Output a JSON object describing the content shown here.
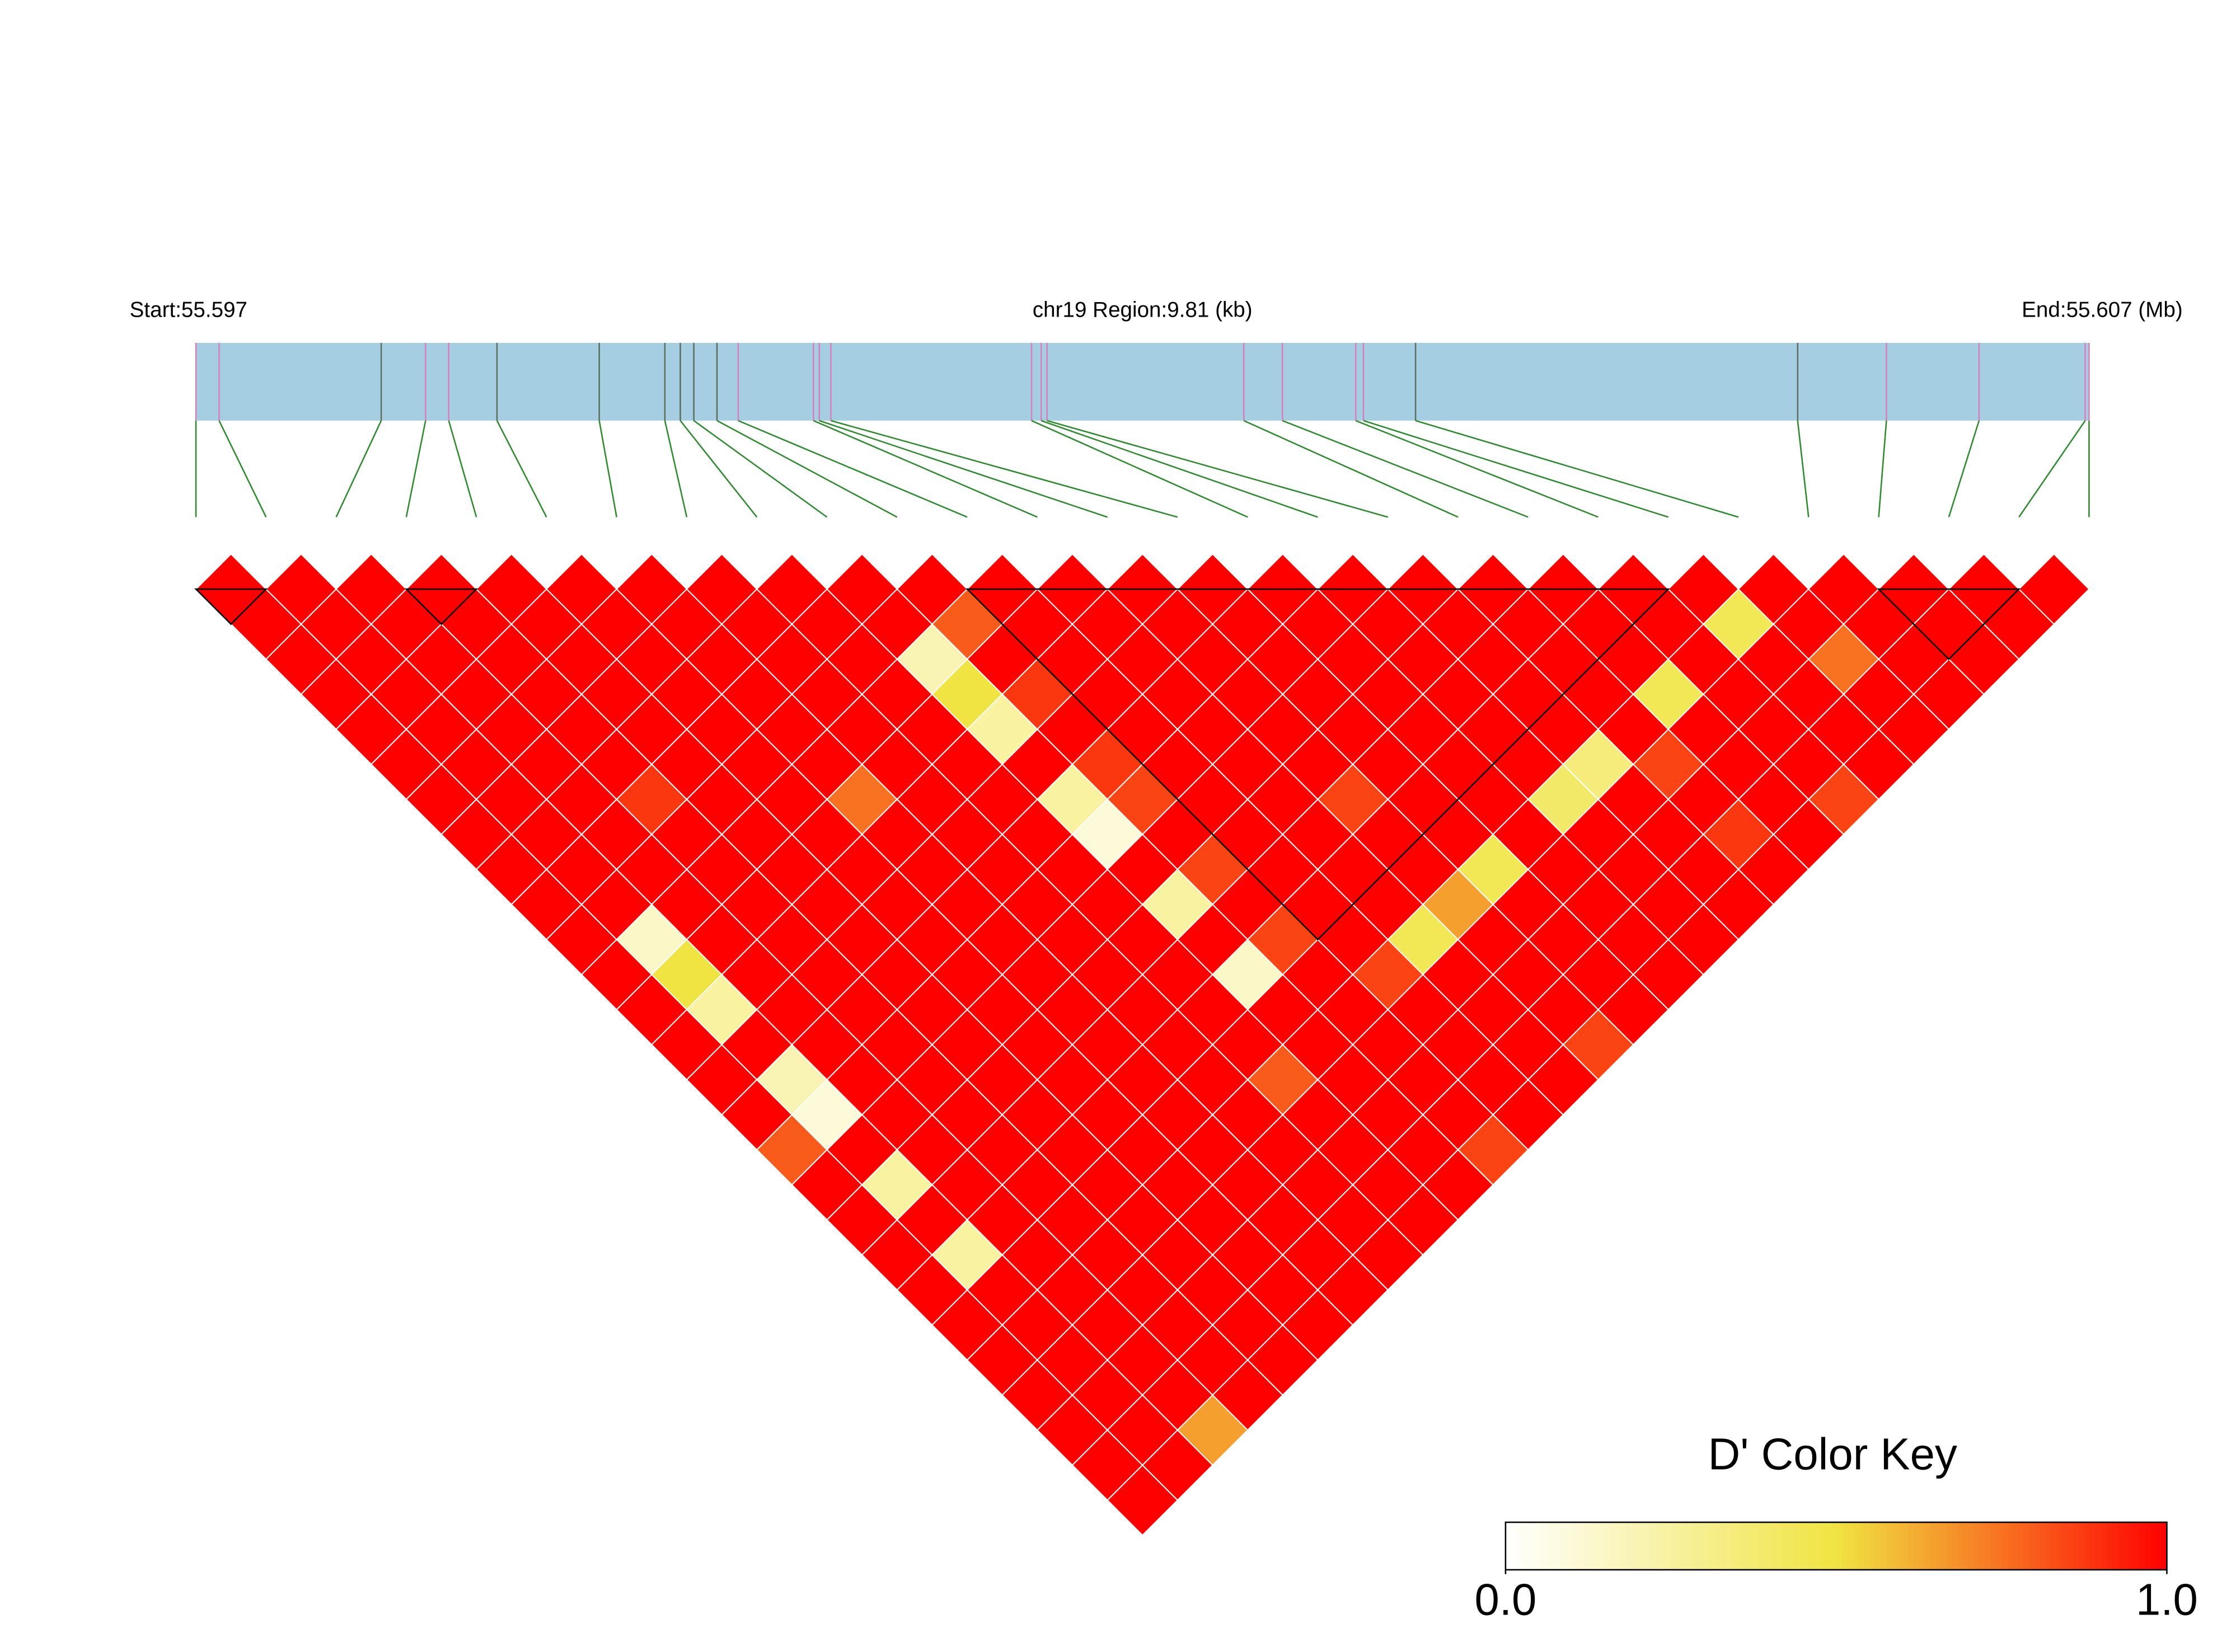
{
  "chart_data": {
    "type": "ld-heatmap",
    "start_label": "Start:55.597",
    "region_label": "chr19 Region:9.81 (kb)",
    "end_label": "End:55.607 (Mb)",
    "key_title": "D' Color Key",
    "key_lim": [
      0,
      1
    ],
    "key_ticks": [
      {
        "value": 0,
        "label": "0.0"
      },
      {
        "value": 1,
        "label": "1.0"
      }
    ],
    "colorscale": [
      {
        "value": 0,
        "color": "#ffffff"
      },
      {
        "value": 0.5,
        "color": "#f0e442"
      },
      {
        "value": 1,
        "color": "#ff0000"
      }
    ],
    "bar_color": "#a6cee3",
    "connector_color": "#2e8b2e",
    "xlim": [
      0,
      9.81
    ],
    "snp_positions_kb": [
      0,
      0.12,
      0.96,
      1.19,
      1.31,
      1.56,
      2.09,
      2.43,
      2.51,
      2.58,
      2.7,
      2.81,
      3.2,
      3.23,
      3.29,
      4.33,
      4.38,
      4.41,
      5.43,
      5.63,
      6.01,
      6.05,
      6.32,
      8.3,
      8.76,
      9.24,
      9.79,
      9.81
    ],
    "marker_colors": [
      "#d67fbf",
      "#d67fbf",
      "#5f6f5f",
      "#d67fbf",
      "#d67fbf",
      "#5f6f5f",
      "#5f6f5f",
      "#5f6f5f",
      "#5f6f5f",
      "#5f6f5f",
      "#5f6f5f",
      "#d67fbf",
      "#d67fbf",
      "#d67fbf",
      "#d67fbf",
      "#d67fbf",
      "#d67fbf",
      "#d67fbf",
      "#d67fbf",
      "#d67fbf",
      "#d67fbf",
      "#d67fbf",
      "#5f6f5f",
      "#5f6f5f",
      "#d67fbf",
      "#d67fbf",
      "#d67fbf",
      "#d67fbf"
    ],
    "blocks": [
      [
        0,
        1
      ],
      [
        3,
        4
      ],
      [
        11,
        21
      ],
      [
        24,
        26
      ]
    ],
    "dprime": [
      [
        1,
        1,
        1,
        1,
        1,
        1,
        1,
        1,
        1,
        1,
        1,
        1,
        1,
        1,
        1,
        1,
        0.8,
        1,
        1,
        1,
        1,
        1,
        1,
        1,
        1,
        1,
        1
      ],
      [
        1,
        1,
        1,
        1,
        1,
        1,
        1,
        1,
        1,
        1,
        0.15,
        0.5,
        0.25,
        1,
        0.2,
        0.1,
        1,
        0.25,
        1,
        0.25,
        1,
        1,
        1,
        1,
        1,
        1
      ],
      [
        1,
        1,
        1,
        1,
        1,
        1,
        1,
        1,
        1,
        1,
        1,
        1,
        1,
        1,
        1,
        1,
        1,
        1,
        1,
        1,
        1,
        1,
        1,
        1,
        0.65
      ],
      [
        1,
        1,
        1,
        1,
        1,
        1,
        0.88,
        1,
        1,
        1,
        1,
        1,
        1,
        1,
        1,
        1,
        1,
        1,
        1,
        1,
        1,
        1,
        1,
        1
      ],
      [
        1,
        1,
        1,
        1,
        1,
        1,
        1,
        1,
        1,
        1,
        1,
        1,
        1,
        1,
        1,
        1,
        1,
        1,
        1,
        1,
        1,
        1,
        1
      ],
      [
        1,
        1,
        1,
        1,
        1,
        1,
        1,
        1,
        1,
        1,
        1,
        1,
        1,
        1,
        1,
        1,
        1,
        1,
        1,
        1,
        1,
        1
      ],
      [
        1,
        1,
        1,
        1,
        1,
        1,
        0.75,
        1,
        1,
        1,
        1,
        1,
        1,
        1,
        1,
        1,
        1,
        1,
        1,
        1,
        1
      ],
      [
        1,
        1,
        1,
        1,
        1,
        1,
        1,
        1,
        1,
        1,
        1,
        1,
        1,
        1,
        1,
        1,
        1,
        1,
        1,
        1
      ],
      [
        1,
        1,
        1,
        1,
        1,
        1,
        1,
        1,
        1,
        1,
        1,
        1,
        1,
        1,
        0.8,
        1,
        1,
        1,
        1
      ],
      [
        1,
        1,
        0.2,
        0.5,
        0.25,
        1,
        0.25,
        0.1,
        1,
        0.25,
        1,
        0.15,
        1,
        1,
        1,
        1,
        1,
        1
      ],
      [
        1,
        0.8,
        1,
        0.88,
        1,
        0.88,
        0.85,
        1,
        0.85,
        1,
        0.85,
        1,
        1,
        1,
        1,
        1,
        0.85
      ],
      [
        1,
        1,
        1,
        1,
        1,
        1,
        1,
        1,
        1,
        1,
        1,
        0.85,
        1,
        1,
        1,
        1
      ],
      [
        1,
        1,
        1,
        1,
        1,
        1,
        1,
        1,
        1,
        1,
        0.45,
        1,
        1,
        1,
        1
      ],
      [
        1,
        1,
        1,
        1,
        1,
        1,
        0.85,
        1,
        1,
        0.65,
        1,
        1,
        1,
        0.85
      ],
      [
        1,
        1,
        1,
        1,
        1,
        1,
        1,
        1,
        0.45,
        1,
        1,
        1,
        1
      ],
      [
        1,
        1,
        1,
        1,
        1,
        1,
        1,
        1,
        1,
        1,
        1,
        1
      ],
      [
        1,
        1,
        1,
        1,
        1,
        1,
        0.4,
        1,
        1,
        1,
        1
      ],
      [
        1,
        1,
        1,
        1,
        1,
        0.35,
        1,
        1,
        1,
        1
      ],
      [
        1,
        1,
        1,
        1,
        1,
        0.85,
        1,
        0.88,
        1
      ],
      [
        1,
        1,
        1,
        0.45,
        1,
        1,
        1,
        1
      ],
      [
        1,
        1,
        1,
        1,
        1,
        1,
        0.85
      ],
      [
        1,
        0.45,
        1,
        1,
        1,
        1
      ],
      [
        1,
        1,
        0.75,
        1,
        1
      ],
      [
        1,
        1,
        1,
        1
      ],
      [
        1,
        1,
        1
      ],
      [
        1,
        1
      ],
      [
        1
      ]
    ]
  }
}
